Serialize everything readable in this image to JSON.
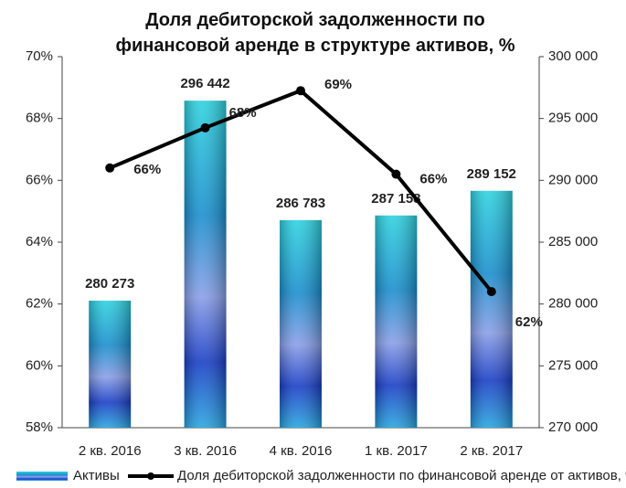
{
  "chart_data": {
    "type": "bar_line",
    "title": "Доля дебиторской задолженности по финансовой аренде в структуре активов, %",
    "categories": [
      "2 кв. 2016",
      "3 кв. 2016",
      "4 кв. 2016",
      "1 кв. 2017",
      "2 кв. 2017"
    ],
    "series": [
      {
        "name": "Активы",
        "type": "bar",
        "axis": "y2",
        "color": "#1f8fd0",
        "values": [
          280273,
          296442,
          286783,
          287158,
          289152
        ],
        "value_labels": [
          "280 273",
          "296 442",
          "286 783",
          "287 158",
          "289 152"
        ]
      },
      {
        "name": "Доля дебиторской задолженности по финансовой аренде от активов, %",
        "type": "line",
        "axis": "y",
        "color": "#000000",
        "label_color": "#e8141b",
        "values": [
          66.4,
          67.7,
          68.9,
          66.2,
          62.4
        ],
        "value_labels": [
          "66%",
          "68%",
          "69%",
          "66%",
          "62%"
        ]
      }
    ],
    "ylim": [
      58,
      70
    ],
    "yticks": [
      {
        "value": 58,
        "label": "58%"
      },
      {
        "value": 60,
        "label": "60%"
      },
      {
        "value": 62,
        "label": "62%"
      },
      {
        "value": 64,
        "label": "64%"
      },
      {
        "value": 66,
        "label": "66%"
      },
      {
        "value": 68,
        "label": "68%"
      },
      {
        "value": 70,
        "label": "70%"
      }
    ],
    "y2lim": [
      270000,
      300000
    ],
    "y2ticks": [
      {
        "value": 270000,
        "label": "270 000"
      },
      {
        "value": 275000,
        "label": "275 000"
      },
      {
        "value": 280000,
        "label": "280 000"
      },
      {
        "value": 285000,
        "label": "285 000"
      },
      {
        "value": 290000,
        "label": "290 000"
      },
      {
        "value": 295000,
        "label": "295 000"
      },
      {
        "value": 300000,
        "label": "300 000"
      }
    ],
    "legend": "bottom"
  }
}
